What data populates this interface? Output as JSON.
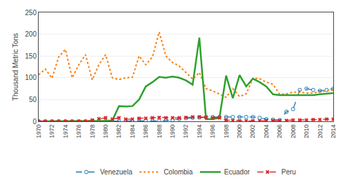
{
  "chart_data": {
    "type": "line",
    "x": [
      1970,
      1971,
      1972,
      1973,
      1974,
      1975,
      1976,
      1977,
      1978,
      1979,
      1980,
      1981,
      1982,
      1983,
      1984,
      1985,
      1986,
      1987,
      1988,
      1989,
      1990,
      1991,
      1992,
      1993,
      1994,
      1995,
      1996,
      1997,
      1998,
      1999,
      2000,
      2001,
      2002,
      2003,
      2004,
      2005,
      2006,
      2007,
      2008,
      2009,
      2010,
      2011,
      2012,
      2013,
      2014
    ],
    "series": [
      {
        "name": "Venezuela",
        "line_style": "dashed",
        "marker": "circle",
        "values": [
          0,
          0,
          0,
          0,
          0,
          0,
          0,
          0,
          0,
          0,
          0,
          0,
          0,
          0,
          0,
          0,
          1,
          1,
          1,
          2,
          3,
          5,
          7,
          8,
          9,
          10,
          10,
          10,
          10,
          10,
          10,
          10,
          10,
          8,
          5,
          4,
          3,
          22,
          28,
          72,
          75,
          72,
          70,
          72,
          75
        ]
      },
      {
        "name": "Colombia",
        "line_style": "dotted",
        "values": [
          107,
          120,
          99,
          148,
          165,
          100,
          130,
          153,
          95,
          130,
          153,
          100,
          96,
          100,
          101,
          150,
          130,
          148,
          205,
          150,
          135,
          127,
          112,
          97,
          112,
          75,
          70,
          62,
          55,
          75,
          57,
          63,
          99,
          98,
          90,
          85,
          62,
          63,
          67,
          67,
          65,
          65,
          68,
          70,
          72
        ]
      },
      {
        "name": "Ecuador",
        "line_style": "solid",
        "values": [
          0,
          0,
          0,
          0,
          0,
          0,
          0,
          0,
          0,
          0,
          1,
          2,
          35,
          34,
          35,
          50,
          80,
          90,
          102,
          100,
          103,
          100,
          94,
          84,
          192,
          5,
          5,
          8,
          105,
          53,
          106,
          80,
          98,
          90,
          80,
          62,
          60,
          60,
          60,
          60,
          60,
          60,
          62,
          63,
          65
        ]
      },
      {
        "name": "Peru",
        "line_style": "dashed",
        "marker": "x",
        "values": [
          0,
          0,
          0,
          0,
          0,
          0,
          0,
          0,
          3,
          6,
          8,
          5,
          8,
          5,
          5,
          7,
          7,
          8,
          9,
          8,
          8,
          8,
          9,
          10,
          10,
          9,
          8,
          8,
          3,
          2,
          1,
          1,
          1,
          1,
          1,
          2,
          2,
          2,
          3,
          3,
          3,
          4,
          4,
          5,
          5
        ]
      }
    ],
    "ylabel": "Thousand Metric Tons",
    "xlim": [
      1970,
      2014
    ],
    "xticks": [
      1970,
      1972,
      1974,
      1976,
      1978,
      1980,
      1982,
      1984,
      1986,
      1988,
      1990,
      1992,
      1994,
      1996,
      1998,
      2000,
      2002,
      2004,
      2006,
      2008,
      2010,
      2012,
      2014
    ],
    "ylim": [
      0,
      250
    ],
    "yticks": [
      0,
      50,
      100,
      150,
      200,
      250
    ],
    "grid": "y",
    "legend": "bottom"
  }
}
